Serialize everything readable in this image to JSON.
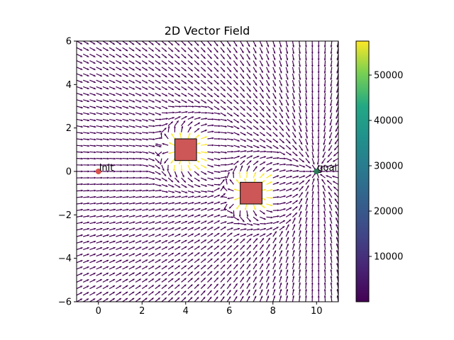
{
  "chart_data": {
    "type": "quiver",
    "title": "2D Vector Field",
    "xlabel": "",
    "ylabel": "",
    "xlim": [
      -1,
      11
    ],
    "ylim": [
      -6,
      6
    ],
    "x_ticks": [
      0,
      2,
      4,
      6,
      8,
      10
    ],
    "y_ticks": [
      -6,
      -4,
      -2,
      0,
      2,
      4,
      6
    ],
    "x_tick_labels": [
      "0",
      "2",
      "4",
      "6",
      "8",
      "10"
    ],
    "y_tick_labels": [
      "−6",
      "−4",
      "−2",
      "0",
      "2",
      "4",
      "6"
    ],
    "grid": false,
    "field": {
      "x_range": [
        -1,
        11
      ],
      "y_range": [
        -6,
        6
      ],
      "spacing": 0.3,
      "general_direction": "toward goal (positive x), with deflection around obstacles",
      "magnitude_note": "most arrows at low magnitude (dark purple); high magnitude (yellow) inside obstacle regions"
    },
    "points": [
      {
        "label": "init",
        "x": 0,
        "y": 0,
        "color": "#d9534f"
      },
      {
        "label": "goal",
        "x": 10,
        "y": 0,
        "color": "#2e7d5b"
      }
    ],
    "obstacles": [
      {
        "x": 3.5,
        "y": 0.5,
        "width": 1.0,
        "height": 1.0,
        "color": "#cd5757"
      },
      {
        "x": 6.5,
        "y": -1.5,
        "width": 1.0,
        "height": 1.0,
        "color": "#cd5757"
      }
    ],
    "colorbar": {
      "colormap": "viridis",
      "min": 0,
      "max": 57500,
      "ticks": [
        10000,
        20000,
        30000,
        40000,
        50000
      ],
      "tick_labels": [
        "10000",
        "20000",
        "30000",
        "40000",
        "50000"
      ]
    }
  },
  "colors": {
    "arrow_low": "#440154",
    "arrow_high": "#fde725",
    "axis": "#000000",
    "background": "#ffffff"
  }
}
